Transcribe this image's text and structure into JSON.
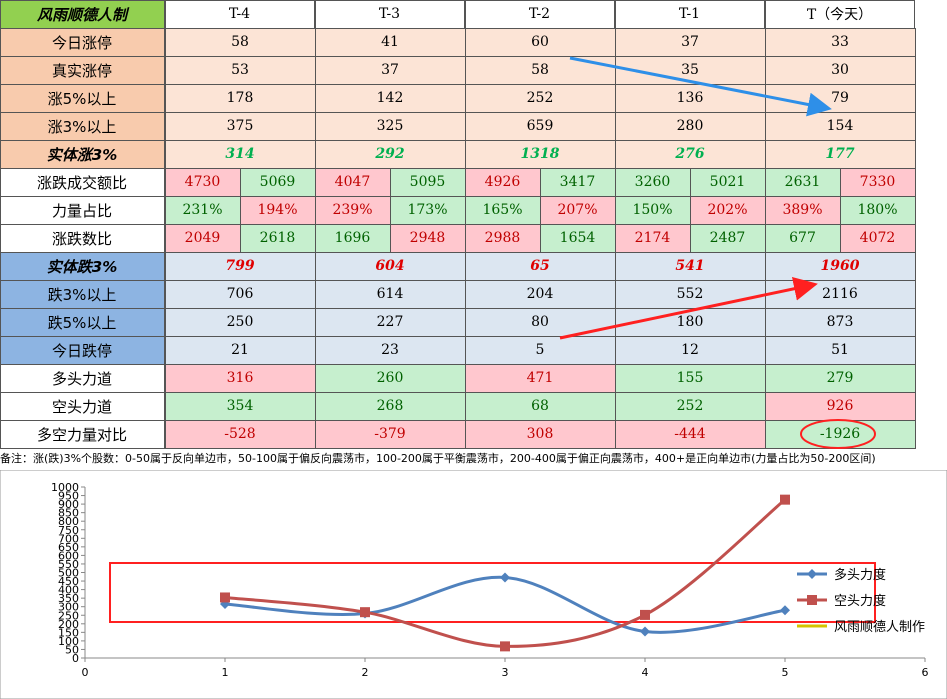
{
  "table": {
    "header": [
      "风雨顺德人制",
      "T-4",
      "T-3",
      "T-2",
      "T-1",
      "T（今天）"
    ],
    "rows": [
      {
        "label": "今日涨停",
        "cells": [
          58,
          41,
          60,
          37,
          33
        ]
      },
      {
        "label": "真实涨停",
        "cells": [
          53,
          37,
          58,
          35,
          30
        ]
      },
      {
        "label": "涨5%以上",
        "cells": [
          178,
          142,
          252,
          136,
          79
        ]
      },
      {
        "label": "涨3%以上",
        "cells": [
          375,
          325,
          659,
          280,
          154
        ]
      },
      {
        "label": "实体涨3%",
        "cells": [
          314,
          292,
          1318,
          276,
          177
        ]
      },
      {
        "label": "涨跌成交额比",
        "cells": [
          [
            4730,
            5069
          ],
          [
            4047,
            5095
          ],
          [
            4926,
            3417
          ],
          [
            3260,
            5021
          ],
          [
            2631,
            7330
          ]
        ]
      },
      {
        "label": "力量占比",
        "cells": [
          [
            "231%",
            "194%"
          ],
          [
            "239%",
            "173%"
          ],
          [
            "165%",
            "207%"
          ],
          [
            "150%",
            "202%"
          ],
          [
            "389%",
            "180%"
          ]
        ]
      },
      {
        "label": "涨跌数比",
        "cells": [
          [
            2049,
            2618
          ],
          [
            1696,
            2948
          ],
          [
            2988,
            1654
          ],
          [
            2174,
            2487
          ],
          [
            677,
            4072
          ]
        ]
      },
      {
        "label": "实体跌3%",
        "cells": [
          799,
          604,
          65,
          541,
          1960
        ]
      },
      {
        "label": "跌3%以上",
        "cells": [
          706,
          614,
          204,
          552,
          2116
        ]
      },
      {
        "label": "跌5%以上",
        "cells": [
          250,
          227,
          80,
          180,
          873
        ]
      },
      {
        "label": "今日跌停",
        "cells": [
          21,
          23,
          5,
          12,
          51
        ]
      },
      {
        "label": "多头力道",
        "cells": [
          316,
          260,
          471,
          155,
          279
        ]
      },
      {
        "label": "空头力道",
        "cells": [
          354,
          268,
          68,
          252,
          926
        ]
      },
      {
        "label": "多空力量对比",
        "cells": [
          -528,
          -379,
          308,
          -444,
          -1926
        ]
      }
    ],
    "note": "备注：涨(跌)3%个股数：0-50属于反向单边市，50-100属于偏反向震荡市，100-200属于平衡震荡市，200-400属于偏正向震荡市，400+是正向单边市(力量占比为50-200区间)"
  },
  "chart_data": {
    "type": "line",
    "x": [
      1,
      2,
      3,
      4,
      5
    ],
    "series": [
      {
        "name": "多头力度",
        "color": "#4f81bd",
        "values": [
          316,
          260,
          471,
          155,
          279
        ]
      },
      {
        "name": "空头力度",
        "color": "#c0504d",
        "values": [
          354,
          268,
          68,
          252,
          926
        ]
      },
      {
        "name": "风雨顺德人制作",
        "color": "#d4c400",
        "values": [
          null,
          null,
          null,
          null,
          null
        ]
      }
    ],
    "xlim": [
      0,
      6
    ],
    "xticks": [
      0,
      1,
      2,
      3,
      4,
      5,
      6
    ],
    "ylim": [
      0,
      1000
    ],
    "yticks": [
      0,
      50,
      100,
      150,
      200,
      250,
      300,
      350,
      400,
      450,
      500,
      550,
      600,
      650,
      700,
      750,
      800,
      850,
      900,
      950,
      1000
    ],
    "legend": "right"
  }
}
